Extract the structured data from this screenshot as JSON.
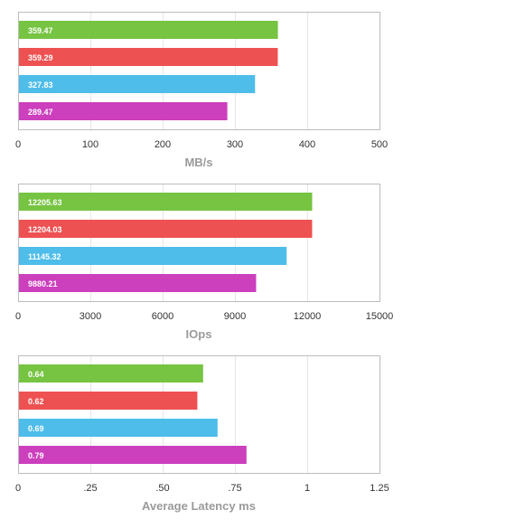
{
  "chart_data": [
    {
      "type": "bar",
      "orientation": "horizontal",
      "xlabel": "MB/s",
      "xlim": [
        0,
        500
      ],
      "xticks": [
        "0",
        "100",
        "200",
        "300",
        "400",
        "500"
      ],
      "tick_values": [
        0,
        100,
        200,
        300,
        400,
        500
      ],
      "grid": true,
      "values": [
        359.47,
        359.29,
        327.83,
        289.47
      ],
      "labels": [
        "359.47",
        "359.29",
        "327.83",
        "289.47"
      ]
    },
    {
      "type": "bar",
      "orientation": "horizontal",
      "xlabel": "IOps",
      "xlim": [
        0,
        15000
      ],
      "xticks": [
        "0",
        "3000",
        "6000",
        "9000",
        "12000",
        "15000"
      ],
      "tick_values": [
        0,
        3000,
        6000,
        9000,
        12000,
        15000
      ],
      "grid": true,
      "values": [
        12205.63,
        12204.03,
        11145.32,
        9880.21
      ],
      "labels": [
        "12205.63",
        "12204.03",
        "11145.32",
        "9880.21"
      ]
    },
    {
      "type": "bar",
      "orientation": "horizontal",
      "xlabel": "Average Latency ms",
      "xlim": [
        0,
        1.25
      ],
      "xticks": [
        "0",
        ".25",
        ".50",
        ".75",
        "1",
        "1.25"
      ],
      "tick_values": [
        0,
        0.25,
        0.5,
        0.75,
        1,
        1.25
      ],
      "grid": true,
      "values": [
        0.64,
        0.62,
        0.69,
        0.79
      ],
      "labels": [
        "0.64",
        "0.62",
        "0.69",
        "0.79"
      ]
    }
  ],
  "colors": {
    "series": [
      "#76c442",
      "#ee5152",
      "#4ebdea",
      "#cc3fbd"
    ],
    "grid": "#e6e6e6",
    "frame": "#bcbcbc"
  }
}
